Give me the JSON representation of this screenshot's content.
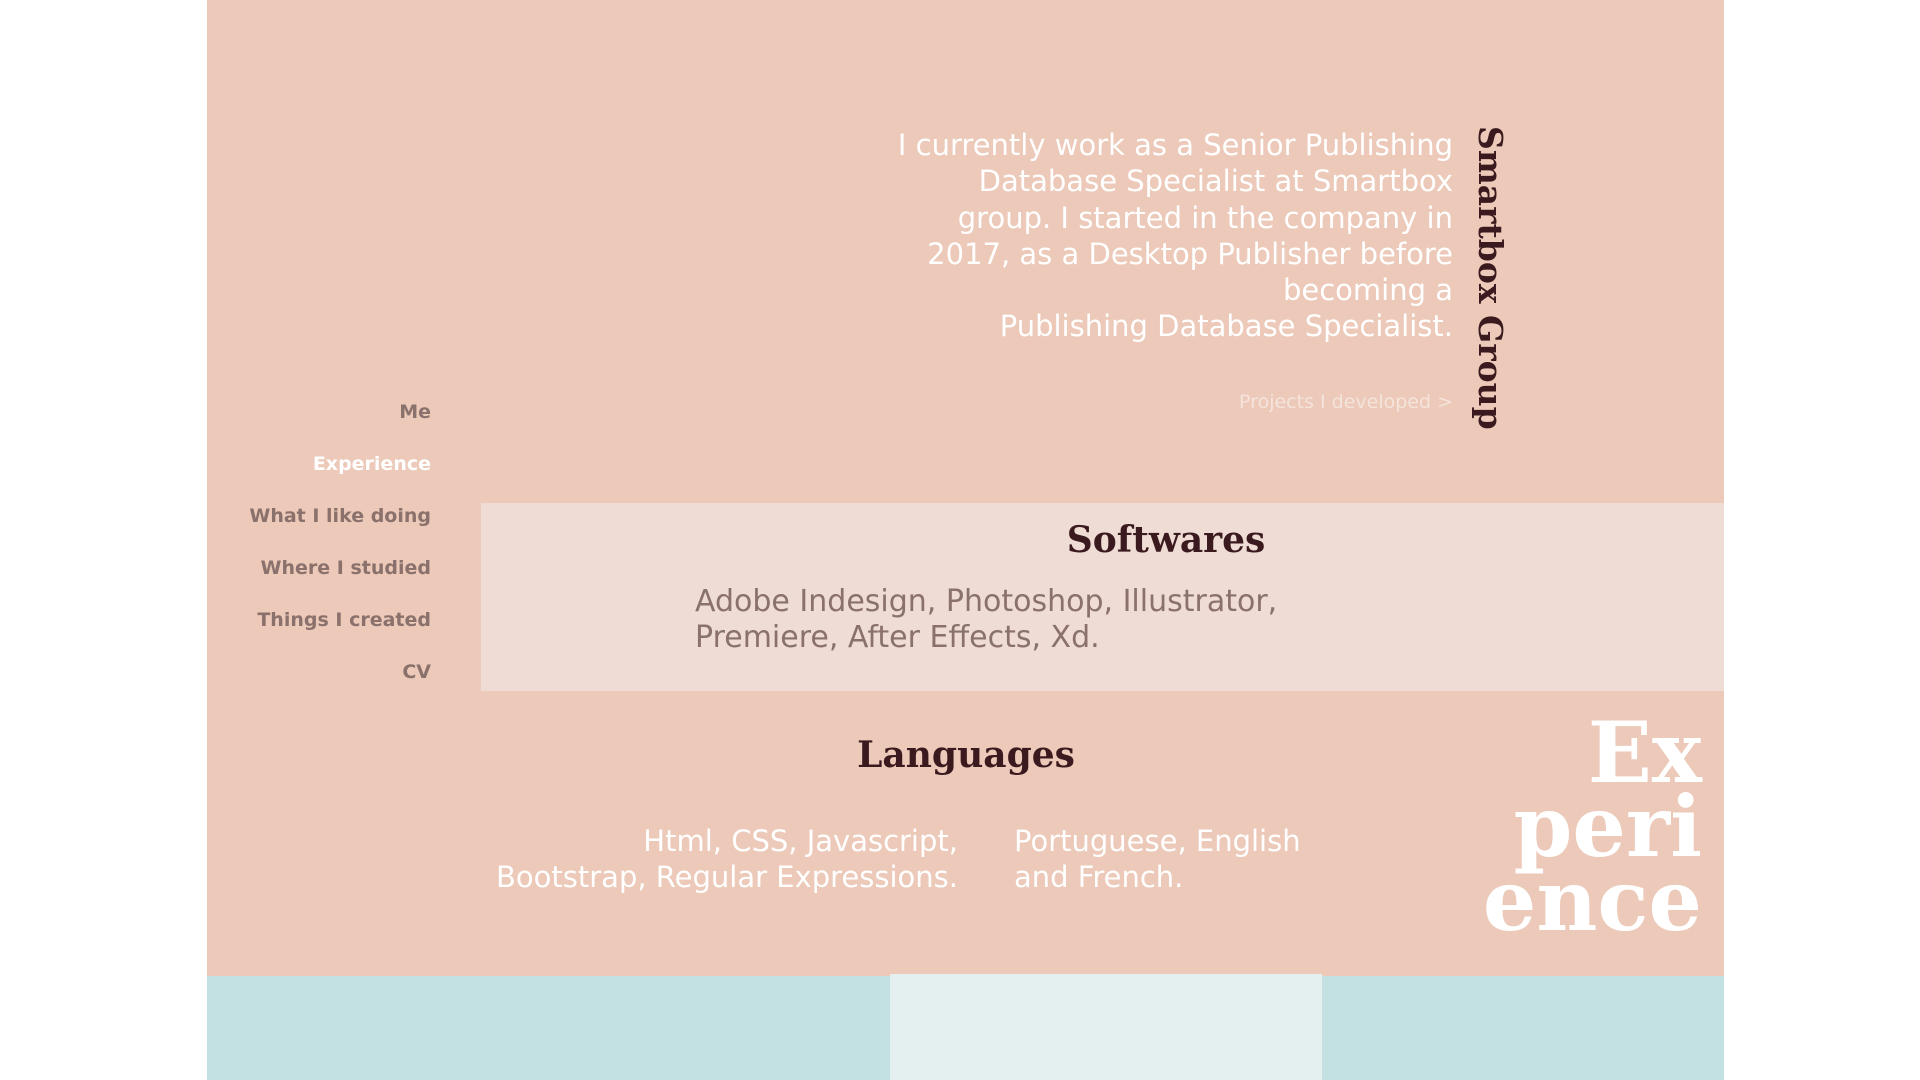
{
  "nav": {
    "items": [
      {
        "label": "Me",
        "active": false
      },
      {
        "label": "Experience",
        "active": true
      },
      {
        "label": "What I like doing",
        "active": false
      },
      {
        "label": "Where I studied",
        "active": false
      },
      {
        "label": "Things I created",
        "active": false
      },
      {
        "label": "CV",
        "active": false
      }
    ]
  },
  "experience": {
    "company": "Smartbox Group",
    "intro_lines": [
      "I currently work as a Senior Publishing",
      "Database Specialist at Smartbox",
      "group. I started in the company in",
      "2017, as a Desktop Publisher before",
      "becoming a",
      "Publishing Database Specialist."
    ],
    "projects_link": "Projects I developed >"
  },
  "softwares": {
    "title": "Softwares",
    "lines": [
      "Adobe Indesign, Photoshop, Illustrator,",
      "Premiere, After Effects, Xd."
    ]
  },
  "languages": {
    "title": "Languages",
    "programming_lines": [
      "Html, CSS, Javascript,",
      "Bootstrap, Regular Expressions."
    ],
    "spoken_lines": [
      "Portuguese, English",
      "and French."
    ]
  },
  "section_title_lines": [
    "Ex",
    "peri",
    "ence"
  ],
  "colors": {
    "panel": "#ecc9b8",
    "panel_light": "#efdcd5",
    "band": "#c3e0e2",
    "band_light": "#e4eff0",
    "heading": "#3a1a1e",
    "muted": "#8a716b"
  }
}
